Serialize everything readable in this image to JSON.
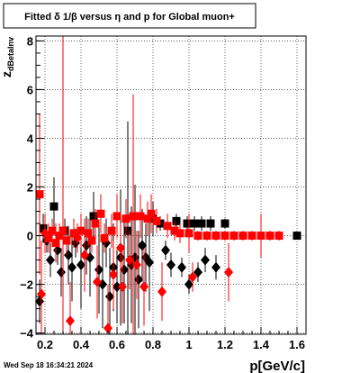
{
  "chart_data": {
    "type": "scatter",
    "title": "Fitted δ 1/β versus η and p for Global muon+",
    "xlabel": "p[GeV/c]",
    "ylabel": "z",
    "ylabel_sub": "dBetaInv",
    "xlim": [
      0.15,
      1.65
    ],
    "ylim": [
      -4.05,
      8.2
    ],
    "xticks": [
      {
        "v": 0.2,
        "label": "0.2"
      },
      {
        "v": 0.4,
        "label": "0.4"
      },
      {
        "v": 0.6,
        "label": "0.6"
      },
      {
        "v": 0.8,
        "label": "0.8"
      },
      {
        "v": 1.0,
        "label": "1"
      },
      {
        "v": 1.2,
        "label": "1.2"
      },
      {
        "v": 1.4,
        "label": "1.4"
      },
      {
        "v": 1.6,
        "label": "1.6"
      }
    ],
    "yticks": [
      {
        "v": -4,
        "label": "−4"
      },
      {
        "v": -2,
        "label": "−2"
      },
      {
        "v": 0,
        "label": "0"
      },
      {
        "v": 2,
        "label": "2"
      },
      {
        "v": 4,
        "label": "4"
      },
      {
        "v": 6,
        "label": "6"
      },
      {
        "v": 8,
        "label": "8"
      }
    ],
    "grid": true,
    "timestamp": "Wed Sep 18 16:34:21 2024",
    "series": [
      {
        "color": "#000000",
        "points": [
          {
            "x": 0.17,
            "y": -2.7,
            "e": 0.9,
            "m": "d"
          },
          {
            "x": 0.19,
            "y": 0.3,
            "e": 0.6,
            "m": "s"
          },
          {
            "x": 0.21,
            "y": -0.2,
            "e": 0.5,
            "m": "d"
          },
          {
            "x": 0.23,
            "y": -1.0,
            "e": 0.7,
            "m": "d"
          },
          {
            "x": 0.25,
            "y": 1.2,
            "e": 1.2,
            "m": "s"
          },
          {
            "x": 0.27,
            "y": -0.6,
            "e": 0.6,
            "m": "d"
          },
          {
            "x": 0.29,
            "y": -1.5,
            "e": 1.0,
            "m": "d"
          },
          {
            "x": 0.31,
            "y": 0.2,
            "e": 0.5,
            "m": "s"
          },
          {
            "x": 0.33,
            "y": -0.8,
            "e": 1.2,
            "m": "d"
          },
          {
            "x": 0.35,
            "y": -1.3,
            "e": 1.4,
            "m": "d"
          },
          {
            "x": 0.37,
            "y": -0.3,
            "e": 0.6,
            "m": "d"
          },
          {
            "x": 0.4,
            "y": -1.2,
            "e": 1.8,
            "m": "d"
          },
          {
            "x": 0.43,
            "y": -0.4,
            "e": 1.2,
            "m": "d"
          },
          {
            "x": 0.45,
            "y": -0.9,
            "e": 1.6,
            "m": "d"
          },
          {
            "x": 0.47,
            "y": 0.8,
            "e": 1.0,
            "m": "s"
          },
          {
            "x": 0.5,
            "y": -1.4,
            "e": 1.8,
            "m": "d"
          },
          {
            "x": 0.52,
            "y": -2.0,
            "e": 1.8,
            "m": "d"
          },
          {
            "x": 0.54,
            "y": -0.3,
            "e": 1.0,
            "m": "d"
          },
          {
            "x": 0.56,
            "y": -2.5,
            "e": 2.0,
            "m": "d"
          },
          {
            "x": 0.58,
            "y": -1.3,
            "e": 1.8,
            "m": "d"
          },
          {
            "x": 0.6,
            "y": -2.1,
            "e": 1.5,
            "m": "d"
          },
          {
            "x": 0.62,
            "y": -0.9,
            "e": 2.8,
            "m": "d"
          },
          {
            "x": 0.64,
            "y": -1.4,
            "e": 2.2,
            "m": "d"
          },
          {
            "x": 0.66,
            "y": 0.2,
            "e": 4.5,
            "m": "s"
          },
          {
            "x": 0.68,
            "y": -1.2,
            "e": 2.4,
            "m": "d"
          },
          {
            "x": 0.7,
            "y": -0.9,
            "e": 3.0,
            "m": "d"
          },
          {
            "x": 0.72,
            "y": -1.8,
            "e": 2.0,
            "m": "d"
          },
          {
            "x": 0.74,
            "y": -0.4,
            "e": 1.5,
            "m": "d"
          },
          {
            "x": 0.76,
            "y": -0.9,
            "e": 1.4,
            "m": "d"
          },
          {
            "x": 0.78,
            "y": -1.1,
            "e": 2.0,
            "m": "d"
          },
          {
            "x": 0.8,
            "y": 0.7,
            "e": 0.7,
            "m": "s"
          },
          {
            "x": 0.84,
            "y": 0.5,
            "e": 0.3,
            "m": "s"
          },
          {
            "x": 0.87,
            "y": -0.6,
            "e": 0.4,
            "m": "d"
          },
          {
            "x": 0.9,
            "y": -1.2,
            "e": 0.5,
            "m": "d"
          },
          {
            "x": 0.93,
            "y": 0.6,
            "e": 0.3,
            "m": "s"
          },
          {
            "x": 0.96,
            "y": -1.3,
            "e": 0.4,
            "m": "d"
          },
          {
            "x": 0.99,
            "y": 0.5,
            "e": 0.3,
            "m": "s"
          },
          {
            "x": 1.0,
            "y": -2.0,
            "e": 0.4,
            "m": "d"
          },
          {
            "x": 1.03,
            "y": 0.5,
            "e": 0.3,
            "m": "s"
          },
          {
            "x": 1.05,
            "y": -1.5,
            "e": 0.4,
            "m": "d"
          },
          {
            "x": 1.07,
            "y": 0.5,
            "e": 0.3,
            "m": "s"
          },
          {
            "x": 1.09,
            "y": -1.0,
            "e": 0.5,
            "m": "d"
          },
          {
            "x": 1.12,
            "y": 0.5,
            "e": 0.3,
            "m": "s"
          },
          {
            "x": 1.15,
            "y": -1.3,
            "e": 0.5,
            "m": "d"
          },
          {
            "x": 1.2,
            "y": 0.5,
            "e": 0.2,
            "m": "s"
          },
          {
            "x": 1.6,
            "y": 0.0,
            "e": 0.1,
            "m": "s"
          }
        ]
      },
      {
        "color": "#ff0000",
        "points": [
          {
            "x": 0.17,
            "y": 1.7,
            "e": 3.3,
            "m": "s"
          },
          {
            "x": 0.18,
            "y": -2.4,
            "e": 2.2,
            "m": "d"
          },
          {
            "x": 0.2,
            "y": 0.1,
            "e": 0.8,
            "m": "d"
          },
          {
            "x": 0.22,
            "y": -0.1,
            "e": 0.6,
            "m": "s"
          },
          {
            "x": 0.24,
            "y": 0.2,
            "e": 0.5,
            "m": "s"
          },
          {
            "x": 0.26,
            "y": -0.3,
            "e": 0.8,
            "m": "s"
          },
          {
            "x": 0.28,
            "y": 0.0,
            "e": 0.5,
            "m": "s"
          },
          {
            "x": 0.3,
            "y": 0.2,
            "e": 8.0,
            "m": "s"
          },
          {
            "x": 0.32,
            "y": -0.2,
            "e": 0.6,
            "m": "s"
          },
          {
            "x": 0.34,
            "y": -3.5,
            "e": 1.6,
            "m": "d"
          },
          {
            "x": 0.36,
            "y": 0.1,
            "e": 0.6,
            "m": "s"
          },
          {
            "x": 0.38,
            "y": -0.1,
            "e": 0.6,
            "m": "d"
          },
          {
            "x": 0.4,
            "y": 0.2,
            "e": 0.7,
            "m": "s"
          },
          {
            "x": 0.42,
            "y": -0.8,
            "e": 1.5,
            "m": "d"
          },
          {
            "x": 0.44,
            "y": 0.1,
            "e": 0.6,
            "m": "s"
          },
          {
            "x": 0.46,
            "y": -0.2,
            "e": 0.5,
            "m": "s"
          },
          {
            "x": 0.48,
            "y": 0.5,
            "e": 0.6,
            "m": "s"
          },
          {
            "x": 0.49,
            "y": -1.9,
            "e": 1.5,
            "m": "d"
          },
          {
            "x": 0.51,
            "y": 0.9,
            "e": 0.8,
            "m": "s"
          },
          {
            "x": 0.53,
            "y": -0.1,
            "e": 0.6,
            "m": "s"
          },
          {
            "x": 0.55,
            "y": -3.8,
            "e": 1.8,
            "m": "d"
          },
          {
            "x": 0.57,
            "y": 0.2,
            "e": 0.7,
            "m": "s"
          },
          {
            "x": 0.58,
            "y": -1.6,
            "e": 1.4,
            "m": "d"
          },
          {
            "x": 0.6,
            "y": 0.8,
            "e": 0.9,
            "m": "s"
          },
          {
            "x": 0.62,
            "y": -0.5,
            "e": 1.0,
            "m": "d"
          },
          {
            "x": 0.63,
            "y": -2.1,
            "e": 1.5,
            "m": "d"
          },
          {
            "x": 0.65,
            "y": 0.7,
            "e": 0.8,
            "m": "s"
          },
          {
            "x": 0.67,
            "y": -1.0,
            "e": 1.2,
            "m": "d"
          },
          {
            "x": 0.69,
            "y": 0.8,
            "e": 5.0,
            "m": "s"
          },
          {
            "x": 0.71,
            "y": -1.2,
            "e": 1.4,
            "m": "d"
          },
          {
            "x": 0.73,
            "y": 0.8,
            "e": 0.9,
            "m": "s"
          },
          {
            "x": 0.75,
            "y": -2.1,
            "e": 1.6,
            "m": "d"
          },
          {
            "x": 0.77,
            "y": 0.7,
            "e": 0.7,
            "m": "s"
          },
          {
            "x": 0.79,
            "y": 0.9,
            "e": 0.8,
            "m": "s"
          },
          {
            "x": 0.82,
            "y": 0.6,
            "e": 0.5,
            "m": "s"
          },
          {
            "x": 0.85,
            "y": -2.3,
            "e": 1.2,
            "m": "d"
          },
          {
            "x": 0.88,
            "y": 0.4,
            "e": 0.5,
            "m": "s"
          },
          {
            "x": 0.92,
            "y": 0.2,
            "e": 0.4,
            "m": "s"
          },
          {
            "x": 0.95,
            "y": 0.1,
            "e": 0.4,
            "m": "s"
          },
          {
            "x": 1.0,
            "y": 0.1,
            "e": 0.8,
            "m": "s"
          },
          {
            "x": 1.02,
            "y": -1.7,
            "e": 0.6,
            "m": "d"
          },
          {
            "x": 1.05,
            "y": 0.0,
            "e": 0.2,
            "m": "s"
          },
          {
            "x": 1.1,
            "y": 0.0,
            "e": 0.2,
            "m": "s"
          },
          {
            "x": 1.15,
            "y": 0.0,
            "e": 0.2,
            "m": "s"
          },
          {
            "x": 1.2,
            "y": 0.0,
            "e": 0.2,
            "m": "s"
          },
          {
            "x": 1.22,
            "y": -1.5,
            "e": 1.2,
            "m": "d"
          },
          {
            "x": 1.25,
            "y": 0.0,
            "e": 0.2,
            "m": "s"
          },
          {
            "x": 1.3,
            "y": 0.0,
            "e": 0.2,
            "m": "s"
          },
          {
            "x": 1.35,
            "y": 0.0,
            "e": 0.2,
            "m": "s"
          },
          {
            "x": 1.4,
            "y": 0.0,
            "e": 0.9,
            "m": "s"
          },
          {
            "x": 1.45,
            "y": 0.0,
            "e": 0.2,
            "m": "s"
          },
          {
            "x": 1.5,
            "y": 0.0,
            "e": 0.2,
            "m": "s"
          }
        ]
      }
    ]
  }
}
